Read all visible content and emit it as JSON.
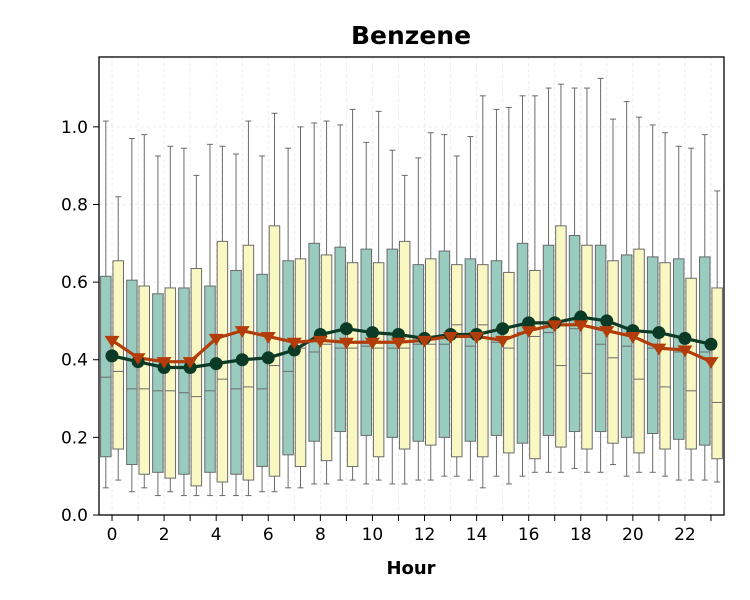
{
  "chart_data": {
    "type": "box",
    "title": "Benzene",
    "xlabel": "Hour",
    "ylabel": "",
    "ylim": [
      0,
      1.18
    ],
    "xlim": [
      -0.5,
      23.5
    ],
    "yticks": [
      "0.0",
      "0.2",
      "0.4",
      "0.6",
      "0.8",
      "1.0"
    ],
    "xticks": [
      "0",
      "2",
      "4",
      "6",
      "8",
      "10",
      "12",
      "14",
      "16",
      "18",
      "20",
      "22"
    ],
    "grid": true,
    "hours": [
      0,
      1,
      2,
      3,
      4,
      5,
      6,
      7,
      8,
      9,
      10,
      11,
      12,
      13,
      14,
      15,
      16,
      17,
      18,
      19,
      20,
      21,
      22,
      23
    ],
    "colors": {
      "box_a": "#99cbbf",
      "box_b": "#f9f8c2",
      "box_edge": "#6b6b6b",
      "line_a": "#0b3a26",
      "line_b": "#b33d0a"
    },
    "series": [
      {
        "boxes": [
          {
            "low": 0.07,
            "q1": 0.15,
            "med": 0.355,
            "q3": 0.615,
            "high": 1.015
          },
          {
            "low": 0.06,
            "q1": 0.13,
            "med": 0.325,
            "q3": 0.605,
            "high": 0.97
          },
          {
            "low": 0.05,
            "q1": 0.11,
            "med": 0.32,
            "q3": 0.57,
            "high": 0.925
          },
          {
            "low": 0.05,
            "q1": 0.105,
            "med": 0.315,
            "q3": 0.585,
            "high": 0.945
          },
          {
            "low": 0.05,
            "q1": 0.11,
            "med": 0.32,
            "q3": 0.59,
            "high": 0.955
          },
          {
            "low": 0.05,
            "q1": 0.105,
            "med": 0.325,
            "q3": 0.63,
            "high": 0.93
          },
          {
            "low": 0.06,
            "q1": 0.125,
            "med": 0.325,
            "q3": 0.62,
            "high": 0.925
          },
          {
            "low": 0.07,
            "q1": 0.155,
            "med": 0.37,
            "q3": 0.655,
            "high": 0.945
          },
          {
            "low": 0.08,
            "q1": 0.19,
            "med": 0.42,
            "q3": 0.7,
            "high": 1.01
          },
          {
            "low": 0.09,
            "q1": 0.215,
            "med": 0.43,
            "q3": 0.69,
            "high": 1.005
          },
          {
            "low": 0.08,
            "q1": 0.205,
            "med": 0.435,
            "q3": 0.685,
            "high": 0.96
          },
          {
            "low": 0.08,
            "q1": 0.2,
            "med": 0.43,
            "q3": 0.685,
            "high": 0.94
          },
          {
            "low": 0.09,
            "q1": 0.19,
            "med": 0.44,
            "q3": 0.645,
            "high": 0.92
          },
          {
            "low": 0.1,
            "q1": 0.2,
            "med": 0.44,
            "q3": 0.68,
            "high": 0.98
          },
          {
            "low": 0.09,
            "q1": 0.19,
            "med": 0.435,
            "q3": 0.66,
            "high": 0.975
          },
          {
            "low": 0.1,
            "q1": 0.205,
            "med": 0.445,
            "q3": 0.655,
            "high": 1.045
          },
          {
            "low": 0.1,
            "q1": 0.185,
            "med": 0.47,
            "q3": 0.7,
            "high": 1.08
          },
          {
            "low": 0.11,
            "q1": 0.205,
            "med": 0.47,
            "q3": 0.695,
            "high": 1.1
          },
          {
            "low": 0.12,
            "q1": 0.215,
            "med": 0.48,
            "q3": 0.72,
            "high": 1.1
          },
          {
            "low": 0.11,
            "q1": 0.215,
            "med": 0.44,
            "q3": 0.695,
            "high": 1.125
          },
          {
            "low": 0.1,
            "q1": 0.2,
            "med": 0.435,
            "q3": 0.67,
            "high": 1.065
          },
          {
            "low": 0.11,
            "q1": 0.21,
            "med": 0.43,
            "q3": 0.665,
            "high": 1.005
          },
          {
            "low": 0.09,
            "q1": 0.195,
            "med": 0.42,
            "q3": 0.66,
            "high": 0.95
          },
          {
            "low": 0.09,
            "q1": 0.18,
            "med": 0.42,
            "q3": 0.665,
            "high": 0.98
          }
        ],
        "line": [
          0.41,
          0.395,
          0.38,
          0.38,
          0.39,
          0.4,
          0.405,
          0.425,
          0.465,
          0.48,
          0.47,
          0.465,
          0.455,
          0.465,
          0.465,
          0.48,
          0.495,
          0.495,
          0.51,
          0.5,
          0.475,
          0.47,
          0.455,
          0.44
        ]
      },
      {
        "boxes": [
          {
            "low": 0.09,
            "q1": 0.17,
            "med": 0.37,
            "q3": 0.655,
            "high": 0.82
          },
          {
            "low": 0.07,
            "q1": 0.105,
            "med": 0.325,
            "q3": 0.59,
            "high": 0.98
          },
          {
            "low": 0.06,
            "q1": 0.095,
            "med": 0.32,
            "q3": 0.585,
            "high": 0.95
          },
          {
            "low": 0.05,
            "q1": 0.075,
            "med": 0.305,
            "q3": 0.635,
            "high": 0.875
          },
          {
            "low": 0.05,
            "q1": 0.085,
            "med": 0.35,
            "q3": 0.705,
            "high": 0.95
          },
          {
            "low": 0.05,
            "q1": 0.09,
            "med": 0.33,
            "q3": 0.695,
            "high": 1.015
          },
          {
            "low": 0.06,
            "q1": 0.1,
            "med": 0.385,
            "q3": 0.745,
            "high": 1.035
          },
          {
            "low": 0.07,
            "q1": 0.125,
            "med": 0.43,
            "q3": 0.66,
            "high": 1.0
          },
          {
            "low": 0.08,
            "q1": 0.14,
            "med": 0.44,
            "q3": 0.67,
            "high": 1.015
          },
          {
            "low": 0.09,
            "q1": 0.125,
            "med": 0.43,
            "q3": 0.65,
            "high": 1.045
          },
          {
            "low": 0.09,
            "q1": 0.15,
            "med": 0.43,
            "q3": 0.65,
            "high": 1.04
          },
          {
            "low": 0.08,
            "q1": 0.17,
            "med": 0.43,
            "q3": 0.705,
            "high": 0.875
          },
          {
            "low": 0.09,
            "q1": 0.18,
            "med": 0.44,
            "q3": 0.66,
            "high": 0.985
          },
          {
            "low": 0.1,
            "q1": 0.15,
            "med": 0.49,
            "q3": 0.645,
            "high": 0.925
          },
          {
            "low": 0.07,
            "q1": 0.15,
            "med": 0.49,
            "q3": 0.645,
            "high": 1.08
          },
          {
            "low": 0.08,
            "q1": 0.16,
            "med": 0.43,
            "q3": 0.625,
            "high": 1.05
          },
          {
            "low": 0.11,
            "q1": 0.145,
            "med": 0.46,
            "q3": 0.63,
            "high": 1.08
          },
          {
            "low": 0.11,
            "q1": 0.175,
            "med": 0.385,
            "q3": 0.745,
            "high": 1.11
          },
          {
            "low": 0.11,
            "q1": 0.17,
            "med": 0.365,
            "q3": 0.695,
            "high": 1.1
          },
          {
            "low": 0.13,
            "q1": 0.185,
            "med": 0.405,
            "q3": 0.655,
            "high": 1.02
          },
          {
            "low": 0.11,
            "q1": 0.16,
            "med": 0.35,
            "q3": 0.685,
            "high": 1.025
          },
          {
            "low": 0.1,
            "q1": 0.17,
            "med": 0.33,
            "q3": 0.65,
            "high": 0.985
          },
          {
            "low": 0.09,
            "q1": 0.17,
            "med": 0.32,
            "q3": 0.61,
            "high": 0.945
          },
          {
            "low": 0.085,
            "q1": 0.145,
            "med": 0.29,
            "q3": 0.585,
            "high": 0.835
          }
        ],
        "line": [
          0.45,
          0.405,
          0.395,
          0.395,
          0.455,
          0.475,
          0.46,
          0.445,
          0.45,
          0.445,
          0.445,
          0.445,
          0.45,
          0.46,
          0.46,
          0.45,
          0.475,
          0.49,
          0.49,
          0.475,
          0.46,
          0.43,
          0.425,
          0.395
        ]
      }
    ]
  }
}
